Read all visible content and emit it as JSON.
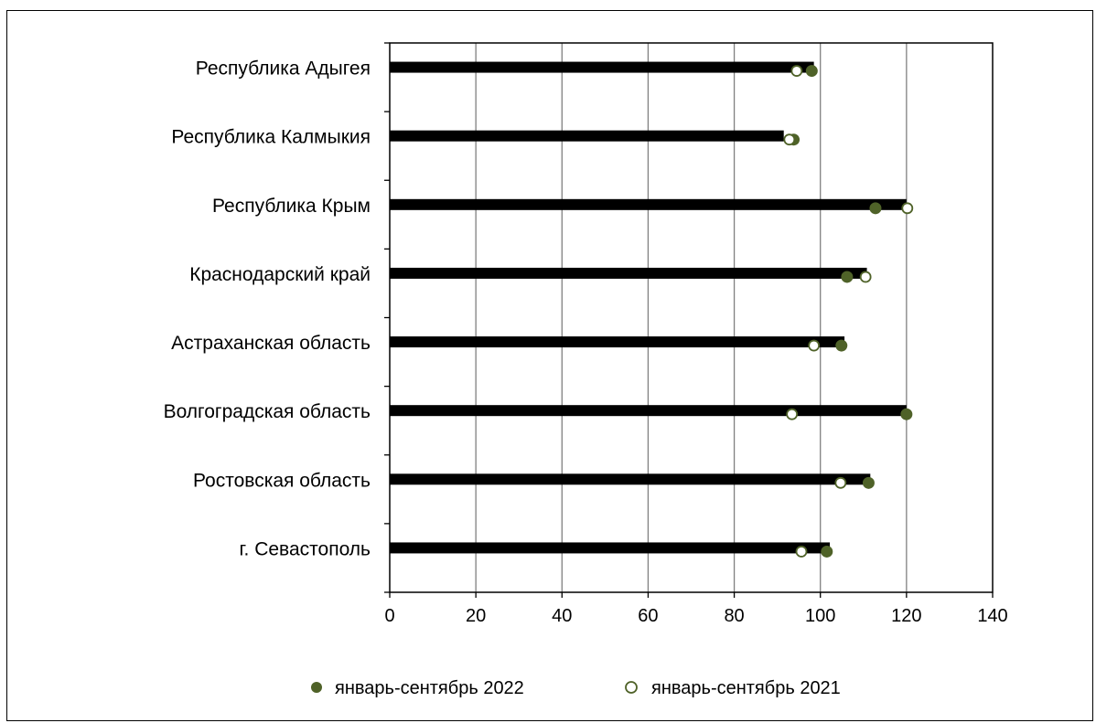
{
  "chart_data": {
    "type": "bar",
    "categories": [
      "Республика Адыгея",
      "Республика Калмыкия",
      "Республика Крым",
      "Краснодарский край",
      "Астраханская область",
      "Волгоградская область",
      "Ростовская область",
      "г. Севастополь"
    ],
    "bar_values": [
      98.5,
      91.5,
      120.0,
      110.8,
      105.6,
      120.0,
      111.6,
      102.2
    ],
    "series": [
      {
        "name": "январь-сентябрь 2022",
        "marker": "filled-circle",
        "values": [
          98.0,
          93.8,
          112.8,
          106.2,
          104.9,
          120.0,
          111.2,
          101.5
        ]
      },
      {
        "name": "январь-сентябрь 2021",
        "marker": "hollow-circle",
        "values": [
          94.5,
          92.8,
          120.2,
          110.5,
          98.5,
          93.4,
          104.7,
          95.6
        ]
      }
    ],
    "xlim": [
      0,
      140
    ],
    "xticks": [
      "0",
      "20",
      "40",
      "60",
      "80",
      "100",
      "120",
      "140"
    ],
    "xtick_values": [
      0,
      20,
      40,
      60,
      80,
      100,
      120,
      140
    ],
    "grid": "vertical",
    "legend_position": "bottom",
    "colors": {
      "bar": "#000000",
      "marker": "#4f6228",
      "grid": "#808080"
    }
  }
}
